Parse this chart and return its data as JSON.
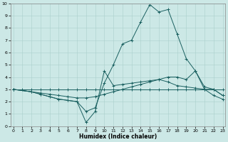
{
  "background_color": "#cce8e6",
  "grid_color": "#aacfcc",
  "line_color": "#1a6060",
  "xlabel": "Humidex (Indice chaleur)",
  "xlim_min": 0,
  "xlim_max": 23,
  "ylim_min": 0,
  "ylim_max": 10,
  "xticks": [
    0,
    1,
    2,
    3,
    4,
    5,
    6,
    7,
    8,
    9,
    10,
    11,
    12,
    13,
    14,
    15,
    16,
    17,
    18,
    19,
    20,
    21,
    22,
    23
  ],
  "yticks": [
    0,
    1,
    2,
    3,
    4,
    5,
    6,
    7,
    8,
    9,
    10
  ],
  "lines": [
    {
      "x": [
        0,
        1,
        2,
        3,
        4,
        5,
        6,
        7,
        8,
        9,
        10,
        11,
        12,
        13,
        14,
        15,
        16,
        17,
        18,
        19,
        20,
        21,
        22,
        23
      ],
      "y": [
        3,
        3,
        3,
        3,
        3,
        3,
        3,
        3,
        3,
        3,
        3,
        3,
        3,
        3,
        3,
        3,
        3,
        3,
        3,
        3,
        3,
        3,
        3,
        3
      ]
    },
    {
      "x": [
        0,
        2,
        3,
        4,
        5,
        6,
        7,
        8,
        9,
        10,
        11,
        12,
        13,
        14,
        15,
        16,
        17,
        18,
        19,
        20,
        21,
        22,
        23
      ],
      "y": [
        3,
        2.8,
        2.7,
        2.6,
        2.5,
        2.4,
        2.3,
        2.3,
        2.4,
        2.6,
        2.8,
        3.0,
        3.2,
        3.4,
        3.6,
        3.8,
        4.0,
        4.0,
        3.8,
        4.5,
        3.2,
        3.0,
        2.5
      ]
    },
    {
      "x": [
        0,
        2,
        3,
        4,
        5,
        6,
        7,
        8,
        9,
        10,
        11,
        12,
        13,
        14,
        15,
        16,
        17,
        18,
        19,
        20,
        21,
        22,
        23
      ],
      "y": [
        3,
        2.8,
        2.6,
        2.4,
        2.2,
        2.1,
        2.0,
        0.3,
        1.2,
        4.5,
        3.3,
        3.4,
        3.5,
        3.6,
        3.7,
        3.8,
        3.6,
        3.3,
        3.2,
        3.1,
        3.0,
        2.5,
        2.2
      ]
    },
    {
      "x": [
        0,
        2,
        3,
        4,
        5,
        6,
        7,
        8,
        9,
        10,
        11,
        12,
        13,
        14,
        15,
        16,
        17,
        18,
        19,
        20,
        21,
        22,
        23
      ],
      "y": [
        3,
        2.8,
        2.6,
        2.4,
        2.2,
        2.1,
        2.0,
        1.2,
        1.5,
        3.5,
        5.0,
        6.7,
        7.0,
        8.5,
        9.9,
        9.3,
        9.5,
        7.5,
        5.5,
        4.5,
        3.0,
        3.0,
        2.5
      ]
    }
  ]
}
